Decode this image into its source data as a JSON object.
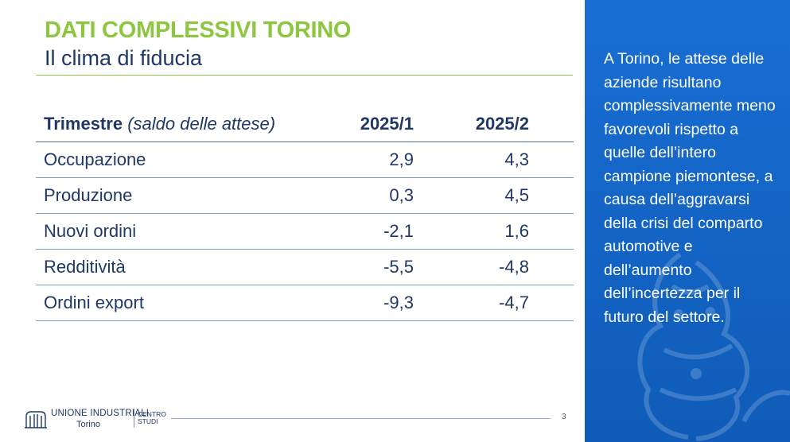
{
  "header": {
    "title": "DATI COMPLESSIVI TORINO",
    "subtitle": "Il clima di fiducia"
  },
  "table": {
    "header": {
      "label_bold": "Trimestre",
      "label_italic": "(saldo delle attese)",
      "col1": "2025/1",
      "col2": "2025/2"
    },
    "rows": [
      {
        "label": "Occupazione",
        "v1": "2,9",
        "v2": "4,3"
      },
      {
        "label": "Produzione",
        "v1": "0,3",
        "v2": "4,5"
      },
      {
        "label": "Nuovi ordini",
        "v1": "-2,1",
        "v2": "1,6"
      },
      {
        "label": "Redditività",
        "v1": "-5,5",
        "v2": "-4,8"
      },
      {
        "label": "Ordini export",
        "v1": "-9,3",
        "v2": "-4,7"
      }
    ]
  },
  "side_panel": {
    "text": "A Torino, le attese delle aziende risultano complessivamente meno favorevoli rispetto a quelle dell’intero campione piemontese, a causa dell’aggravarsi della crisi del comparto automotive e dell’aumento dell’incertezza per il futuro del settore.",
    "background_color": "#1466c8",
    "watermark_icon": "lion-emblem-icon"
  },
  "footer": {
    "org_name": "UNIONE INDUSTRIALI",
    "city": "Torino",
    "dept_line1": "CENTRO",
    "dept_line2": "STUDI",
    "logo_icon": "union-emblem-icon",
    "page_number": "3"
  },
  "colors": {
    "accent_green": "#8dc63f",
    "navy": "#1f3864",
    "panel_blue": "#1466c8"
  }
}
